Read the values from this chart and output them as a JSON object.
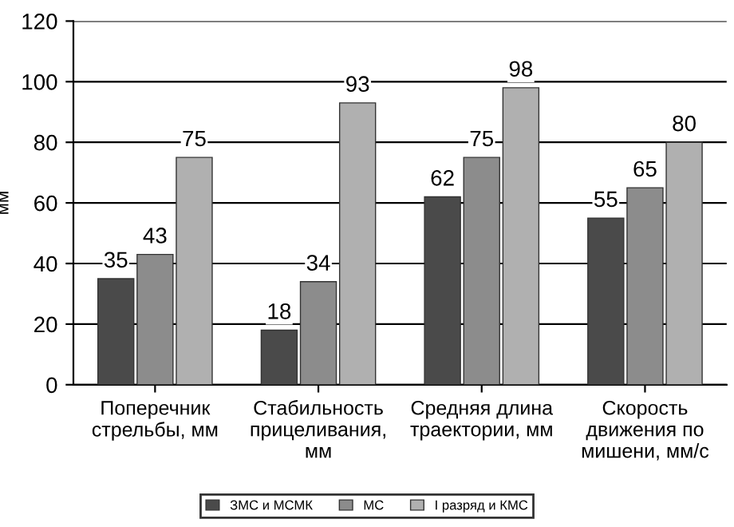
{
  "chart_data": {
    "type": "bar",
    "ylabel": "мм",
    "categories": [
      "Поперечник\nстрельбы, мм",
      "Стабильность\nприцеливания,\nмм",
      "Средняя длина\nтраектории, мм",
      "Скорость\nдвижения по\nмишени, мм/с"
    ],
    "series": [
      {
        "name": "ЗМС и МСМК",
        "color": "#4a4a4a",
        "values": [
          35,
          18,
          62,
          55
        ]
      },
      {
        "name": "МС",
        "color": "#8c8c8c",
        "values": [
          43,
          34,
          75,
          65
        ]
      },
      {
        "name": "I разряд и КМС",
        "color": "#b0b0b0",
        "values": [
          75,
          93,
          98,
          80
        ]
      }
    ],
    "ylim": [
      0,
      120
    ],
    "yticks": [
      0,
      20,
      40,
      60,
      80,
      100,
      120
    ],
    "grid": "y",
    "legend": "bottom",
    "data_labels": true
  }
}
